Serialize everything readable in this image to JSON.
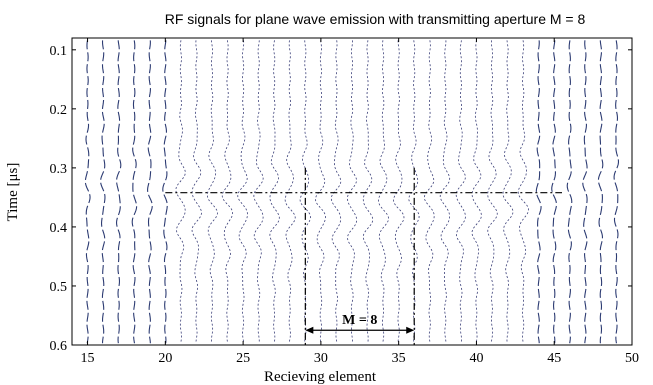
{
  "chart_data": {
    "type": "line",
    "title": "RF signals for plane wave emission with transmitting aperture M = 8",
    "xlabel": "Recieving element",
    "ylabel": "Time [μs]",
    "xlim": [
      14,
      50
    ],
    "ylim": [
      0.6,
      0.08
    ],
    "y_axis_inverted": true,
    "xticks": [
      15,
      20,
      25,
      30,
      35,
      40,
      45,
      50
    ],
    "ytick_labels": [
      "0.1",
      "0.2",
      "0.3",
      "0.4",
      "0.5",
      "0.6"
    ],
    "yticks": [
      0.1,
      0.2,
      0.3,
      0.4,
      0.5,
      0.6
    ],
    "traces": {
      "elements": [
        15,
        16,
        17,
        18,
        19,
        20,
        21,
        22,
        23,
        24,
        25,
        26,
        27,
        28,
        29,
        30,
        31,
        32,
        33,
        34,
        35,
        36,
        37,
        38,
        39,
        40,
        41,
        42,
        43,
        44,
        45,
        46,
        47,
        48,
        49
      ],
      "wavefront_time_min": 0.335,
      "wavefront_time_max": 0.37,
      "style": "dashed vertical RF traces"
    },
    "annotations": {
      "wavefront_line": {
        "time": 0.342,
        "x_from": 20,
        "x_to": 45.5
      },
      "aperture_markers": {
        "x": [
          29,
          36
        ],
        "time_from": 0.3,
        "time_to": 0.6
      },
      "aperture_arrow": {
        "x_from": 29,
        "x_to": 36,
        "time": 0.575,
        "label": "M = 8"
      }
    },
    "grid": false
  }
}
